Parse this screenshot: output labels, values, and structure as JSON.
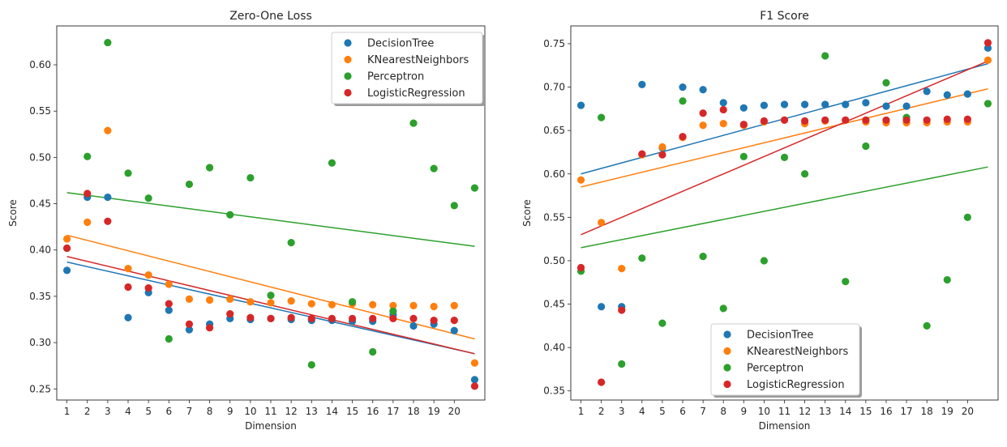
{
  "chart_data": [
    {
      "type": "scatter",
      "title": "Zero-One Loss",
      "xlabel": "Dimension",
      "ylabel": "Score",
      "xticks": [
        1,
        2,
        3,
        4,
        5,
        6,
        7,
        8,
        9,
        10,
        11,
        12,
        13,
        14,
        15,
        16,
        17,
        18,
        19,
        20
      ],
      "xlim": [
        0.5,
        21.5
      ],
      "yticks": [
        0.25,
        0.3,
        0.35,
        0.4,
        0.45,
        0.5,
        0.55,
        0.6
      ],
      "ytick_labels": [
        "0.25",
        "0.30",
        "0.35",
        "0.40",
        "0.45",
        "0.50",
        "0.55",
        "0.60"
      ],
      "ylim": [
        0.238,
        0.642
      ],
      "legend_placement": "top-right",
      "x": [
        1,
        2,
        3,
        4,
        5,
        6,
        7,
        8,
        9,
        10,
        11,
        12,
        13,
        14,
        15,
        16,
        17,
        18,
        19,
        20,
        21
      ],
      "series": [
        {
          "name": "DecisionTree",
          "color": "#1f77b4",
          "values": [
            0.378,
            0.457,
            0.457,
            0.327,
            0.354,
            0.335,
            0.314,
            0.32,
            0.326,
            0.325,
            0.326,
            0.325,
            0.324,
            0.324,
            0.323,
            0.323,
            0.33,
            0.318,
            0.32,
            0.313,
            0.26
          ],
          "trend": [
            0.387,
            0.288
          ]
        },
        {
          "name": "KNearestNeighbors",
          "color": "#ff7f0e",
          "values": [
            0.412,
            0.43,
            0.529,
            0.38,
            0.373,
            0.363,
            0.347,
            0.346,
            0.347,
            0.344,
            0.343,
            0.345,
            0.342,
            0.341,
            0.342,
            0.341,
            0.34,
            0.34,
            0.339,
            0.34,
            0.278
          ],
          "trend": [
            0.416,
            0.304
          ]
        },
        {
          "name": "Perceptron",
          "color": "#2ca02c",
          "values": [
            0.402,
            0.501,
            0.624,
            0.483,
            0.456,
            0.304,
            0.471,
            0.489,
            0.438,
            0.478,
            0.351,
            0.408,
            0.276,
            0.494,
            0.344,
            0.29,
            0.334,
            0.537,
            0.488,
            0.448,
            0.467
          ],
          "trend": [
            0.462,
            0.404
          ]
        },
        {
          "name": "LogisticRegression",
          "color": "#d62728",
          "values": [
            0.402,
            0.461,
            0.431,
            0.36,
            0.359,
            0.342,
            0.32,
            0.316,
            0.331,
            0.327,
            0.326,
            0.327,
            0.326,
            0.326,
            0.326,
            0.326,
            0.326,
            0.326,
            0.324,
            0.324,
            0.253
          ],
          "trend": [
            0.393,
            0.288
          ]
        }
      ]
    },
    {
      "type": "scatter",
      "title": "F1 Score",
      "xlabel": "Dimension",
      "ylabel": "Score",
      "xticks": [
        1,
        2,
        3,
        4,
        5,
        6,
        7,
        8,
        9,
        10,
        11,
        12,
        13,
        14,
        15,
        16,
        17,
        18,
        19,
        20
      ],
      "xlim": [
        0.5,
        21.5
      ],
      "yticks": [
        0.35,
        0.4,
        0.45,
        0.5,
        0.55,
        0.6,
        0.65,
        0.7,
        0.75
      ],
      "ytick_labels": [
        "0.35",
        "0.40",
        "0.45",
        "0.50",
        "0.55",
        "0.60",
        "0.65",
        "0.70",
        "0.75"
      ],
      "ylim": [
        0.3395,
        0.7705
      ],
      "legend_placement": "lower-center",
      "x": [
        1,
        2,
        3,
        4,
        5,
        6,
        7,
        8,
        9,
        10,
        11,
        12,
        13,
        14,
        15,
        16,
        17,
        18,
        19,
        20,
        21
      ],
      "series": [
        {
          "name": "DecisionTree",
          "color": "#1f77b4",
          "values": [
            0.679,
            0.447,
            0.447,
            0.703,
            0.63,
            0.7,
            0.697,
            0.682,
            0.676,
            0.679,
            0.68,
            0.68,
            0.68,
            0.68,
            0.682,
            0.678,
            0.678,
            0.695,
            0.691,
            0.692,
            0.745
          ],
          "trend": [
            0.6,
            0.727
          ]
        },
        {
          "name": "KNearestNeighbors",
          "color": "#ff7f0e",
          "values": [
            0.593,
            0.544,
            0.491,
            0.622,
            0.631,
            0.642,
            0.656,
            0.658,
            0.656,
            0.66,
            0.662,
            0.658,
            0.661,
            0.662,
            0.66,
            0.659,
            0.659,
            0.659,
            0.66,
            0.66,
            0.731
          ],
          "trend": [
            0.585,
            0.698
          ]
        },
        {
          "name": "Perceptron",
          "color": "#2ca02c",
          "values": [
            0.488,
            0.665,
            0.381,
            0.503,
            0.428,
            0.684,
            0.505,
            0.445,
            0.62,
            0.5,
            0.619,
            0.6,
            0.736,
            0.476,
            0.632,
            0.705,
            0.665,
            0.425,
            0.478,
            0.55,
            0.681
          ],
          "trend": [
            0.515,
            0.608
          ]
        },
        {
          "name": "LogisticRegression",
          "color": "#d62728",
          "values": [
            0.492,
            0.36,
            0.443,
            0.623,
            0.622,
            0.643,
            0.67,
            0.674,
            0.657,
            0.661,
            0.662,
            0.661,
            0.662,
            0.662,
            0.662,
            0.662,
            0.662,
            0.662,
            0.663,
            0.663,
            0.751
          ],
          "trend": [
            0.53,
            0.73
          ]
        }
      ]
    }
  ]
}
